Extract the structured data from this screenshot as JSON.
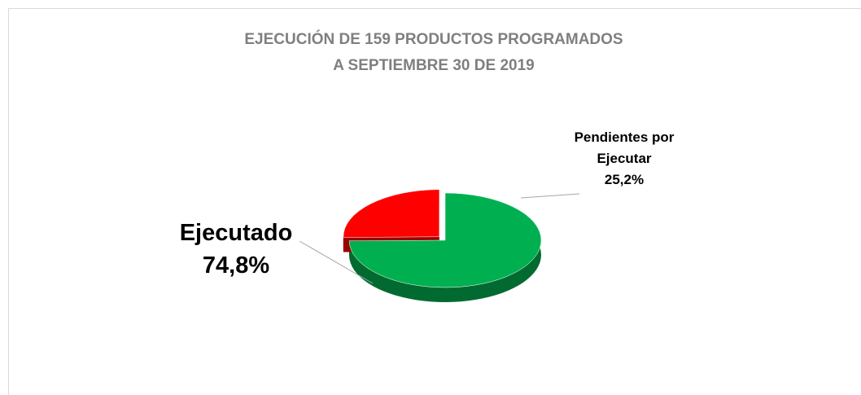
{
  "chart_data": {
    "type": "pie",
    "title": [
      "EJECUCIÓN DE 159 PRODUCTOS PROGRAMADOS",
      "A SEPTIEMBRE 30 DE 2019"
    ],
    "categories": [
      "Ejecutado",
      "Pendientes por Ejecutar"
    ],
    "values": [
      74.8,
      25.2
    ],
    "value_labels": [
      "74,8%",
      "25,2%"
    ],
    "colors": [
      "#00b050",
      "#ff0000"
    ]
  }
}
